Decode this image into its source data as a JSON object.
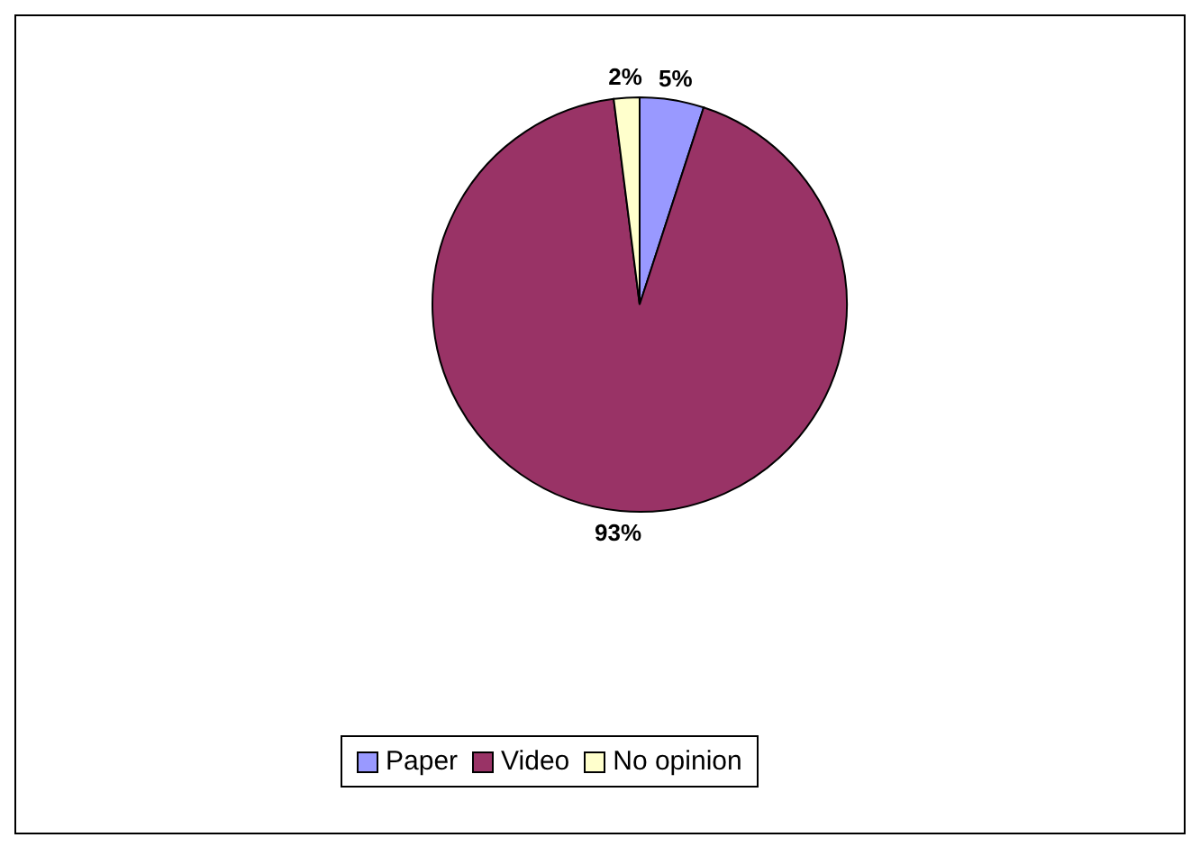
{
  "chart_data": {
    "type": "pie",
    "categories": [
      "Paper",
      "Video",
      "No opinion"
    ],
    "values": [
      5,
      93,
      2
    ],
    "value_labels": [
      "5%",
      "93%",
      "2%"
    ],
    "colors": [
      "#9999ff",
      "#993366",
      "#ffffcc"
    ],
    "legend": "bottom"
  }
}
